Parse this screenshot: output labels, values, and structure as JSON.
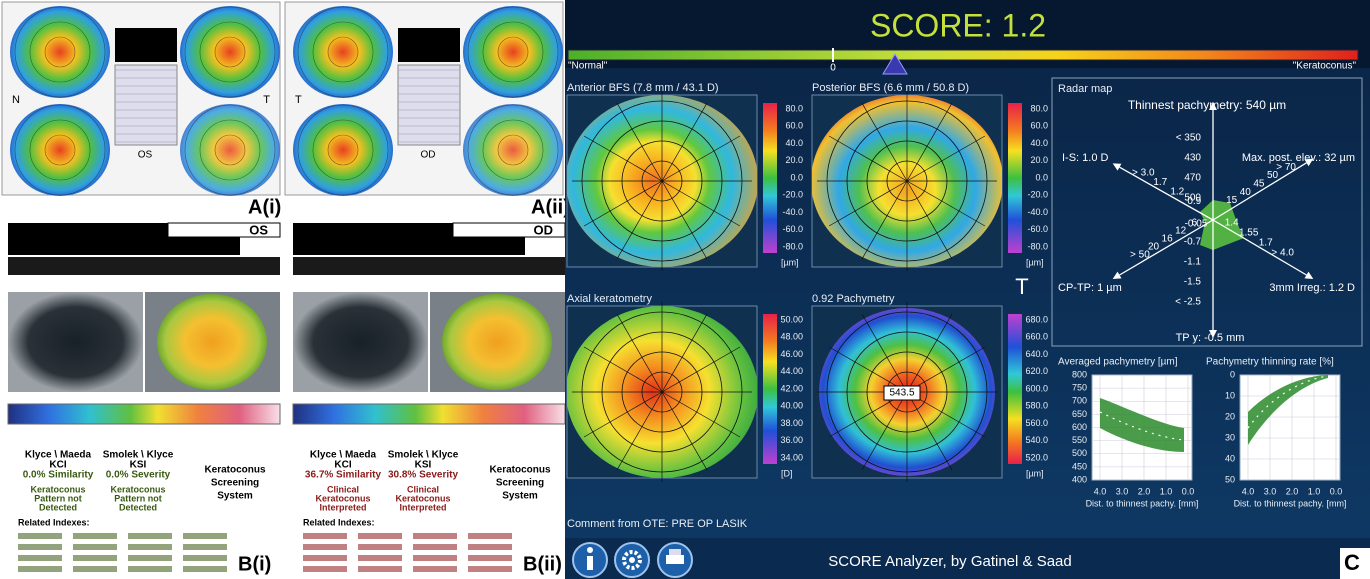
{
  "left": {
    "a1": "A(i)",
    "a2": "A(ii)",
    "n1": "N",
    "t1": "T",
    "t2": "T",
    "os_map": "OS",
    "od_map": "OD",
    "b_os": "OS",
    "b_od": "OD",
    "b1": "B(i)",
    "b2": "B(ii)",
    "kss_left": {
      "km": "Klyce \\ Maeda",
      "kci": "KCI",
      "sim": "0.0% Similarity",
      "sk": "Smolek \\ Klyce",
      "ksi": "KSI",
      "sev": "0.0% Severity",
      "r1": [
        "Keratoconus",
        "Pattern not",
        "Detected"
      ],
      "r2": [
        "Keratoconus",
        "Pattern not",
        "Detected"
      ],
      "system": [
        "Keratoconus",
        "Screening",
        "System"
      ],
      "related": "Related Indexes:"
    },
    "kss_right": {
      "km": "Klyce \\ Maeda",
      "kci": "KCI",
      "sim": "36.7% Similarity",
      "sk": "Smolek \\ Klyce",
      "ksi": "KSI",
      "sev": "30.8% Severity",
      "r1": [
        "Clinical",
        "Keratoconus",
        "Interpreted"
      ],
      "r2": [
        "Clinical",
        "Keratoconus",
        "Interpreted"
      ],
      "system": [
        "Keratoconus",
        "Screening",
        "System"
      ],
      "related": "Related Indexes:"
    }
  },
  "score": {
    "title": "SCORE: 1.2",
    "normal": "\"Normal\"",
    "zero": "0",
    "keratoconus": "\"Keratoconus\""
  },
  "maps": [
    {
      "title": "Anterior BFS (7.8 mm / 43.1 D)",
      "ticks": [
        "80.0",
        "60.0",
        "40.0",
        "20.0",
        "0.0",
        "-20.0",
        "-40.0",
        "-60.0",
        "-80.0"
      ],
      "unit": "[µm]"
    },
    {
      "title": "Posterior BFS (6.6 mm / 50.8 D)",
      "ticks": [
        "80.0",
        "60.0",
        "40.0",
        "20.0",
        "0.0",
        "-20.0",
        "-40.0",
        "-60.0",
        "-80.0"
      ],
      "unit": "[µm]"
    },
    {
      "title": "Axial keratometry",
      "ticks": [
        "50.00",
        "48.00",
        "46.00",
        "44.00",
        "42.00",
        "40.00",
        "38.00",
        "36.00",
        "34.00"
      ],
      "unit": "[D]"
    },
    {
      "title": "0.92  Pachymetry",
      "ticks": [
        "680.0",
        "660.0",
        "640.0",
        "620.0",
        "600.0",
        "580.0",
        "560.0",
        "540.0",
        "520.0"
      ],
      "unit": "[µm]"
    }
  ],
  "pachy_center": "543.5",
  "t_label": "T",
  "radar": {
    "title": "Radar map",
    "top": "Thinnest pachymetry: 540 µm",
    "ne": "Max. post. elev.: 32 µm",
    "se": "3mm Irreg.: 1.2 D",
    "bottom": "TP y: -0.5 mm",
    "sw": "CP-TP: 1 µm",
    "nw": "I-S: 1.0 D",
    "center": "-0.05",
    "axes": {
      "up": [
        "500",
        "470",
        "430",
        "< 350"
      ],
      "ne": [
        "15",
        "40",
        "45",
        "50",
        "> 70"
      ],
      "se": [
        "1.4",
        "1.55",
        "1.7",
        "> 4.0"
      ],
      "down": [
        "-0.7",
        "-1.1",
        "-1.5",
        "< -2.5"
      ],
      "sw": [
        "6",
        "12",
        "16",
        "20",
        "> 50"
      ],
      "nw": [
        "0.9",
        "1.2",
        "1.7",
        "> 3.0"
      ]
    }
  },
  "charts": [
    {
      "title": "Averaged pachymetry [µm]",
      "yticks": [
        "800",
        "750",
        "700",
        "650",
        "600",
        "550",
        "500",
        "450",
        "400"
      ],
      "xticks": [
        "4.0",
        "3.0",
        "2.0",
        "1.0",
        "0.0"
      ],
      "xlabel": "Dist. to thinnest pachy. [mm]"
    },
    {
      "title": "Pachymetry thinning rate [%]",
      "yticks": [
        "0",
        "10",
        "20",
        "30",
        "40",
        "50"
      ],
      "xticks": [
        "4.0",
        "3.0",
        "2.0",
        "1.0",
        "0.0"
      ],
      "xlabel": "Dist. to thinnest pachy. [mm]"
    }
  ],
  "footer": {
    "comment": "Comment from OTE: PRE OP LASIK",
    "app": "SCORE Analyzer, by Gatinel & Saad",
    "panel": "C"
  }
}
